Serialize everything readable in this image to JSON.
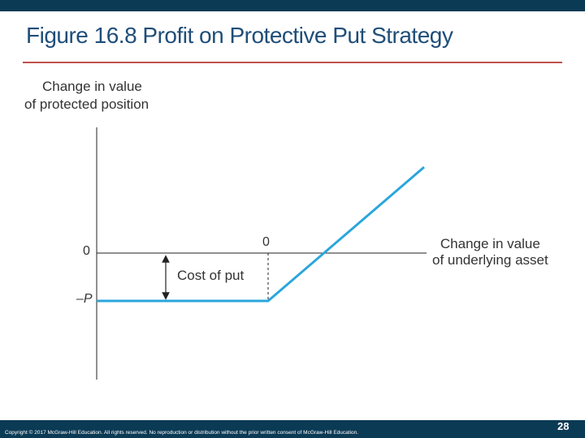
{
  "slide": {
    "title": "Figure 16.8 Profit on Protective Put Strategy",
    "page_number": "28",
    "copyright": "Copyright © 2017 McGraw-Hill Education. All rights reserved. No reproduction or distribution without the prior written consent of McGraw-Hill Education."
  },
  "diagram": {
    "y_axis_label_line1": "Change in value",
    "y_axis_label_line2": "of protected position",
    "x_axis_label_line1": "Change in value",
    "x_axis_label_line2": "of underlying asset",
    "y_tick_zero": "0",
    "y_tick_put": "–P",
    "x_tick_zero": "0",
    "annotation": "Cost of put"
  },
  "colors": {
    "band": "#0b3a55",
    "title": "#1f4e79",
    "rule": "#c0504d",
    "payoff_line": "#2aa6dc"
  }
}
